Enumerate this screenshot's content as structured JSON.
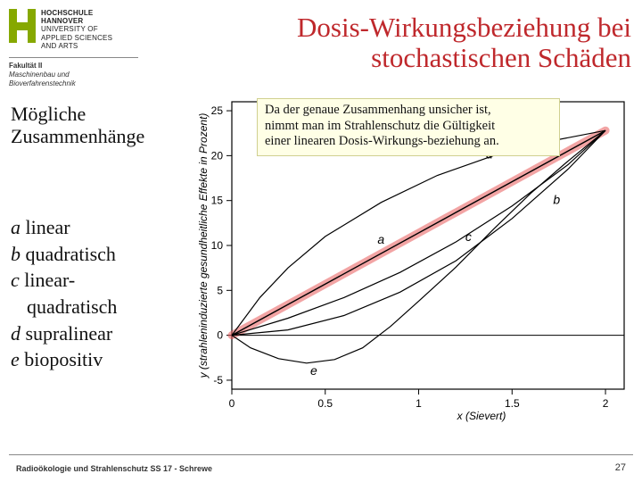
{
  "logo": {
    "uni1": "HOCHSCHULE",
    "uni2": "HANNOVER",
    "uni3": "UNIVERSITY OF",
    "uni4": "APPLIED SCIENCES",
    "uni5": "AND ARTS",
    "fak": "Fakultät II",
    "dep1": "Maschinenbau und",
    "dep2": "Bioverfahrenstechnik",
    "h_color": "#86a800"
  },
  "title_line1": "Dosis-Wirkungsbeziehung  bei",
  "title_line2": "stochastischen Schäden",
  "subhead_line1": "Mögliche",
  "subhead_line2": "Zusammenhänge",
  "list": {
    "a_key": "a",
    "a_text": " linear",
    "b_key": "b",
    "b_text": " quadratisch",
    "c_key": "c",
    "c_text1": " linear-",
    "c_text2": "quadratisch",
    "d_key": "d",
    "d_text": " supralinear",
    "e_key": "e",
    "e_text": " biopositiv"
  },
  "note": {
    "l1": "Da der genaue Zusammenhang unsicher ist,",
    "l2": "nimmt man im Strahlenschutz die Gültigkeit",
    "l3": "einer linearen Dosis-Wirkungs-beziehung an."
  },
  "chart": {
    "type": "line",
    "xlim": [
      0,
      2.1
    ],
    "ylim": [
      -6,
      26
    ],
    "xticks": [
      0,
      0.5,
      1,
      1.5,
      2
    ],
    "yticks": [
      -5,
      0,
      5,
      10,
      15,
      20,
      25
    ],
    "xlabel": "x (Sievert)",
    "ylabel": "y (strahleninduzierte gesundheitliche Effekte in Prozent)",
    "axis_color": "#000000",
    "tick_fontsize": 12,
    "label_fontsize": 12,
    "highlight": {
      "color": "#e85a5a",
      "opacity": 0.55,
      "width": 9
    },
    "curves": {
      "a": {
        "label": "a",
        "color": "#000000",
        "width": 1.4,
        "points": [
          [
            0,
            0
          ],
          [
            2,
            22.8
          ]
        ]
      },
      "b": {
        "label": "b",
        "color": "#000000",
        "width": 1.2,
        "points": [
          [
            0,
            0
          ],
          [
            0.3,
            0.6
          ],
          [
            0.6,
            2.2
          ],
          [
            0.9,
            4.8
          ],
          [
            1.2,
            8.3
          ],
          [
            1.5,
            13.0
          ],
          [
            1.8,
            18.5
          ],
          [
            2.0,
            22.8
          ]
        ]
      },
      "c": {
        "label": "c",
        "color": "#000000",
        "width": 1.2,
        "points": [
          [
            0,
            0
          ],
          [
            0.3,
            1.9
          ],
          [
            0.6,
            4.2
          ],
          [
            0.9,
            7.0
          ],
          [
            1.2,
            10.4
          ],
          [
            1.5,
            14.4
          ],
          [
            1.8,
            19.0
          ],
          [
            2.0,
            22.8
          ]
        ]
      },
      "d": {
        "label": "d",
        "color": "#000000",
        "width": 1.2,
        "points": [
          [
            0,
            0
          ],
          [
            0.15,
            4.2
          ],
          [
            0.3,
            7.5
          ],
          [
            0.5,
            11.0
          ],
          [
            0.8,
            14.8
          ],
          [
            1.1,
            17.8
          ],
          [
            1.4,
            20.0
          ],
          [
            1.7,
            21.6
          ],
          [
            2.0,
            22.8
          ]
        ]
      },
      "e": {
        "label": "e",
        "color": "#000000",
        "width": 1.2,
        "points": [
          [
            0,
            0
          ],
          [
            0.1,
            -1.4
          ],
          [
            0.25,
            -2.6
          ],
          [
            0.4,
            -3.1
          ],
          [
            0.55,
            -2.7
          ],
          [
            0.7,
            -1.4
          ],
          [
            0.85,
            1.0
          ],
          [
            1.0,
            3.8
          ],
          [
            1.2,
            7.6
          ],
          [
            1.4,
            11.8
          ],
          [
            1.6,
            15.8
          ],
          [
            1.8,
            19.4
          ],
          [
            2.0,
            22.8
          ]
        ]
      }
    },
    "curve_label_positions": {
      "a": [
        0.78,
        10.2
      ],
      "b": [
        1.72,
        14.6
      ],
      "c": [
        1.25,
        10.5
      ],
      "d": [
        1.36,
        19.7
      ],
      "e": [
        0.42,
        -4.4
      ]
    }
  },
  "footer": {
    "left": "Radioökologie und Strahlenschutz SS 17 -  Schrewe",
    "page": "27"
  }
}
